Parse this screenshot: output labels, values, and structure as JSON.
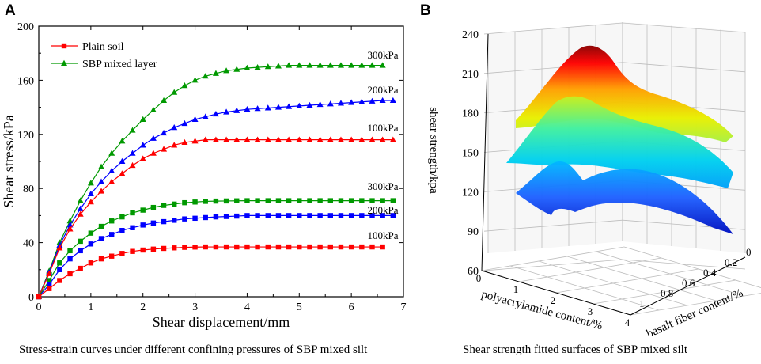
{
  "panel_a": {
    "letter": "A",
    "caption": "Stress-strain curves under different confining pressures of SBP mixed silt"
  },
  "panel_b": {
    "letter": "B",
    "caption": "Shear strength fitted surfaces of SBP mixed silt"
  },
  "colors": {
    "red": "#ff0000",
    "green": "#009900",
    "blue": "#0000ff"
  },
  "chart_data": [
    {
      "type": "line",
      "title": "Stress-strain curves under different confining pressures of SBP mixed silt",
      "xlabel": "Shear displacement/mm",
      "ylabel": "Shear stress/kPa",
      "xlim": [
        0,
        7
      ],
      "ylim": [
        0,
        200
      ],
      "xticks": [
        0,
        1,
        2,
        3,
        4,
        5,
        6,
        7
      ],
      "yticks": [
        0,
        40,
        80,
        120,
        160,
        200
      ],
      "legend": [
        {
          "label": "Plain soil",
          "marker": "square",
          "color": "#ff0000"
        },
        {
          "label": "SBP mixed layer",
          "marker": "triangle",
          "color": "#009900"
        }
      ],
      "x": [
        0,
        0.2,
        0.4,
        0.6,
        0.8,
        1.0,
        1.2,
        1.4,
        1.6,
        1.8,
        2.0,
        2.2,
        2.4,
        2.6,
        2.8,
        3.0,
        3.2,
        3.4,
        3.6,
        3.8,
        4.0,
        4.2,
        4.4,
        4.6,
        4.8,
        5.0,
        5.2,
        5.4,
        5.6,
        5.8,
        6.0,
        6.2,
        6.4,
        6.6,
        6.8
      ],
      "series": [
        {
          "name": "SBP mixed layer 300kPa",
          "marker": "triangle",
          "color": "#009900",
          "label": "300kPa",
          "values": [
            0,
            19,
            40,
            56,
            71,
            84,
            96,
            106,
            115,
            123,
            131,
            138,
            145,
            151,
            156,
            160,
            163,
            165,
            167,
            168,
            169,
            169.5,
            170,
            170.5,
            171,
            171,
            171,
            171,
            171,
            171,
            171,
            171,
            171,
            171,
            null
          ]
        },
        {
          "name": "SBP mixed layer 200kPa",
          "marker": "triangle",
          "color": "#0000ff",
          "label": "200kPa",
          "values": [
            0,
            18,
            38,
            53,
            65,
            76,
            85,
            93,
            100,
            106,
            112,
            117,
            121,
            125,
            128,
            131,
            133,
            135,
            136.5,
            137.5,
            138.5,
            139,
            139.5,
            140,
            140.5,
            141,
            141.5,
            142,
            142.5,
            143,
            143.5,
            144,
            144.5,
            145,
            145
          ]
        },
        {
          "name": "SBP mixed layer 100kPa",
          "marker": "triangle",
          "color": "#ff0000",
          "label": "100kPa",
          "values": [
            0,
            17,
            36,
            50,
            61,
            70,
            78,
            85,
            91,
            97,
            102,
            106,
            109,
            112,
            114,
            115,
            116,
            116,
            116,
            116,
            116,
            116,
            116,
            116,
            116,
            116,
            116,
            116,
            116,
            116,
            116,
            116,
            116,
            116,
            116
          ]
        },
        {
          "name": "Plain soil 300kPa",
          "marker": "square",
          "color": "#009900",
          "label": "300kPa",
          "values": [
            0,
            12,
            25,
            34,
            41,
            47,
            52,
            56,
            59,
            62,
            64,
            66,
            67.5,
            68.5,
            69.5,
            70,
            70.5,
            70.7,
            70.8,
            70.9,
            71,
            71,
            71,
            71,
            71,
            71,
            71,
            71,
            71,
            71,
            71,
            71,
            71,
            71,
            71
          ]
        },
        {
          "name": "Plain soil 200kPa",
          "marker": "square",
          "color": "#0000ff",
          "label": "200kPa",
          "values": [
            0,
            9,
            20,
            28,
            34,
            39,
            43,
            46,
            49,
            51,
            53,
            54.5,
            55.5,
            56.5,
            57.5,
            58,
            58.5,
            59,
            59.3,
            59.6,
            60,
            60,
            60,
            60,
            60,
            60,
            60,
            60,
            60,
            60,
            60,
            60,
            60,
            60,
            60
          ]
        },
        {
          "name": "Plain soil 100kPa",
          "marker": "square",
          "color": "#ff0000",
          "label": "100kPa",
          "values": [
            0,
            6,
            12,
            17,
            21,
            25,
            28,
            30,
            32,
            33.5,
            34.5,
            35.2,
            35.7,
            36.1,
            36.5,
            36.7,
            36.8,
            36.8,
            36.8,
            36.8,
            36.8,
            36.8,
            36.8,
            36.8,
            36.8,
            36.8,
            36.8,
            36.8,
            36.8,
            36.8,
            36.8,
            36.8,
            36.8,
            36.8,
            null
          ]
        }
      ]
    },
    {
      "type": "surface3d",
      "title": "Shear strength fitted surfaces of SBP mixed silt",
      "zlabel": "shear strength/kpa",
      "xlabel": "polyacrylamide content/%",
      "ylabel": "basalt fiber content/%",
      "zlim": [
        60,
        240
      ],
      "zticks": [
        60,
        90,
        120,
        150,
        180,
        210,
        240
      ],
      "xticks": [
        0,
        1,
        2,
        3,
        4
      ],
      "yticks": [
        1,
        0.8,
        0.6,
        0.4,
        0.2,
        0
      ],
      "surfaces": [
        {
          "name": "300kPa surface",
          "z_range": [
            130,
            232
          ],
          "colormap": "jet"
        },
        {
          "name": "200kPa surface",
          "z_range": [
            120,
            185
          ],
          "colormap": "jet"
        },
        {
          "name": "100kPa surface",
          "z_range": [
            85,
            135
          ],
          "colormap": "jet"
        }
      ]
    }
  ]
}
